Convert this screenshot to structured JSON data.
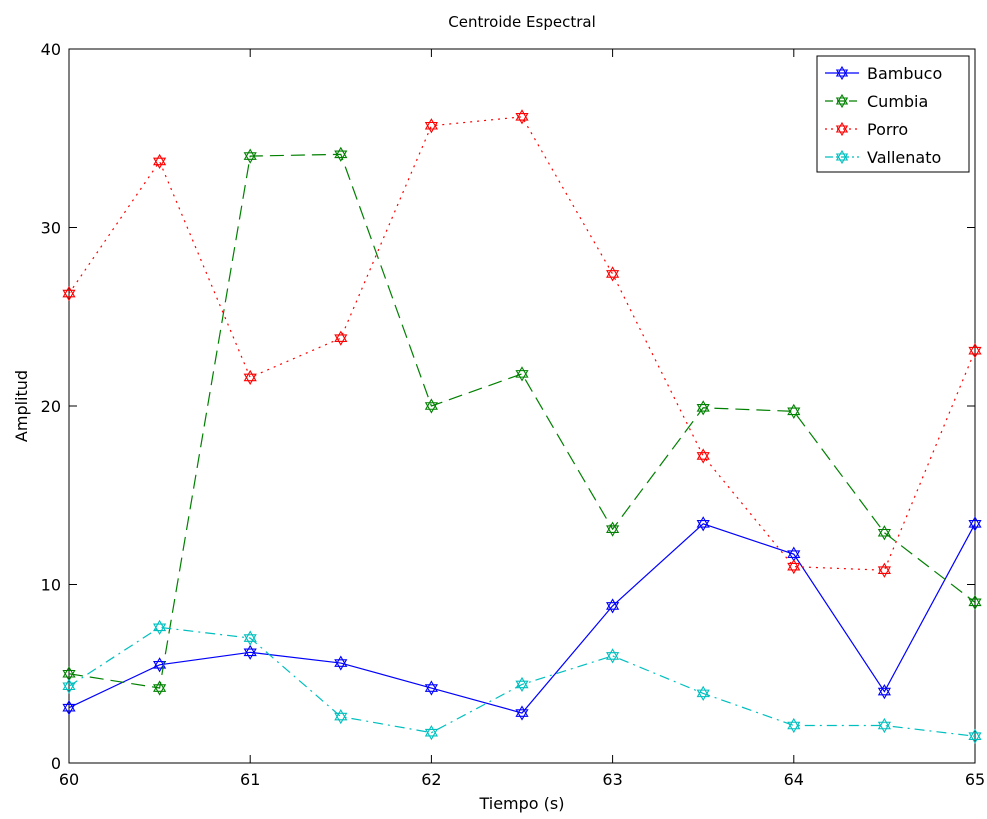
{
  "chart_data": {
    "type": "line",
    "title": "Centroide Espectral",
    "xlabel": "Tiempo (s)",
    "ylabel": "Amplitud",
    "xlim": [
      60,
      65
    ],
    "ylim": [
      0,
      40
    ],
    "xticks": [
      "60",
      "61",
      "62",
      "63",
      "64",
      "65"
    ],
    "yticks": [
      "0",
      "10",
      "20",
      "30",
      "40"
    ],
    "grid": false,
    "legend_position": "top-right",
    "x": [
      60,
      60.5,
      61,
      61.5,
      62,
      62.5,
      63,
      63.5,
      64,
      64.5,
      65
    ],
    "series": [
      {
        "name": "Bambuco",
        "color": "#0000ff",
        "style": "solid",
        "marker": "hexagram",
        "values": [
          3.1,
          5.5,
          6.2,
          5.6,
          4.2,
          2.8,
          8.8,
          13.4,
          11.7,
          4.0,
          13.4
        ]
      },
      {
        "name": "Cumbia",
        "color": "#008000",
        "style": "dashed",
        "marker": "hexagram",
        "values": [
          5.0,
          4.2,
          34.0,
          34.1,
          20.0,
          21.8,
          13.1,
          19.9,
          19.7,
          12.9,
          9.0
        ]
      },
      {
        "name": "Porro",
        "color": "#ff0000",
        "style": "dotted",
        "marker": "hexagram",
        "values": [
          26.3,
          33.7,
          21.6,
          23.8,
          35.7,
          36.2,
          27.4,
          17.2,
          11.0,
          10.8,
          23.1
        ]
      },
      {
        "name": "Vallenato",
        "color": "#00bfbf",
        "style": "dashdot",
        "marker": "hexagram",
        "values": [
          4.3,
          7.6,
          7.0,
          2.6,
          1.7,
          4.4,
          6.0,
          3.9,
          2.1,
          2.1,
          1.5
        ]
      }
    ]
  }
}
